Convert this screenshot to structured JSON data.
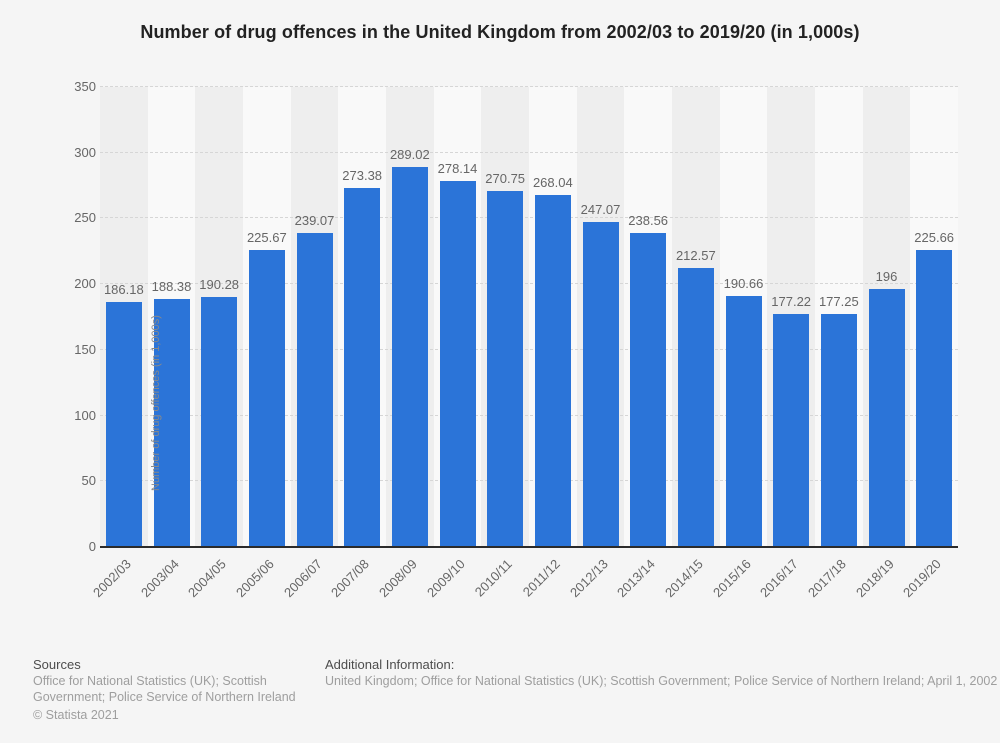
{
  "title": "Number of drug offences in the United Kingdom from 2002/03 to 2019/20 (in 1,000s)",
  "chart_data": {
    "type": "bar",
    "title": "Number of drug offences in the United Kingdom from 2002/03 to 2019/20 (in 1,000s)",
    "categories": [
      "2002/03",
      "2003/04",
      "2004/05",
      "2005/06",
      "2006/07",
      "2007/08",
      "2008/09",
      "2009/10",
      "2010/11",
      "2011/12",
      "2012/13",
      "2013/14",
      "2014/15",
      "2015/16",
      "2016/17",
      "2017/18",
      "2018/19",
      "2019/20"
    ],
    "values": [
      186.18,
      188.38,
      190.28,
      225.67,
      239.07,
      273.38,
      289.02,
      278.14,
      270.75,
      268.04,
      247.07,
      238.56,
      212.57,
      190.66,
      177.22,
      177.25,
      196,
      225.66
    ],
    "value_labels": [
      "186.18",
      "188.38",
      "190.28",
      "225.67",
      "239.07",
      "273.38",
      "289.02",
      "278.14",
      "270.75",
      "268.04",
      "247.07",
      "238.56",
      "212.57",
      "190.66",
      "177.22",
      "177.25",
      "196",
      "225.66"
    ],
    "xlabel": "",
    "ylabel": "Number of drug offences (in 1,000s)",
    "yticks": [
      0,
      50,
      100,
      150,
      200,
      250,
      300,
      350
    ],
    "ylim": [
      0,
      350
    ],
    "grid": true,
    "legend": "none",
    "bar_color": "#2b74d8"
  },
  "footer": {
    "sources_heading": "Sources",
    "sources_lines": [
      "Office for National Statistics (UK); Scottish",
      "Government; Police Service of Northern Ireland"
    ],
    "copyright": "© Statista 2021",
    "additional_heading": "Additional Information:",
    "additional_text": "United Kingdom; Office for National Statistics (UK); Scottish Government; Police Service of Northern Ireland; April 1, 2002"
  },
  "colors": {
    "bar": "#2b74d8",
    "background": "#f5f5f5",
    "stripe_dark": "#eeeeee",
    "stripe_light": "#f9f9f9",
    "axis": "#2b2b2b",
    "text_muted": "#666666"
  }
}
